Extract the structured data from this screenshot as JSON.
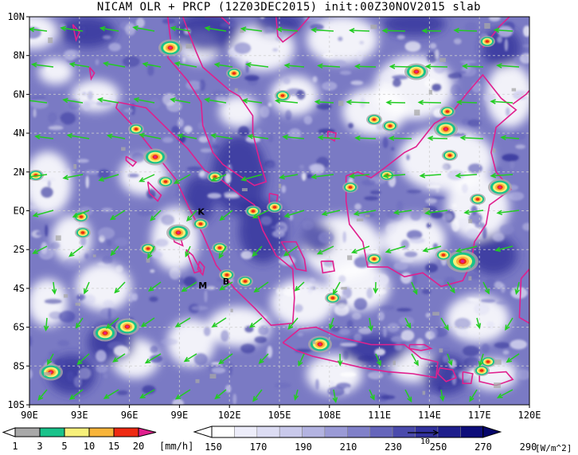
{
  "title": "NICAM OLR + PRCP (12Z03DEC2015) init:00Z30NOV2015 slab",
  "map": {
    "lat_labels": [
      "10N",
      "8N",
      "6N",
      "4N",
      "2N",
      "EQ",
      "2S",
      "4S",
      "6S",
      "8S",
      "10S"
    ],
    "lon_labels": [
      "90E",
      "93E",
      "96E",
      "99E",
      "102E",
      "105E",
      "108E",
      "111E",
      "114E",
      "117E",
      "120E"
    ],
    "station_labels": [
      {
        "text": "K",
        "lon": 100.3,
        "lat": -0.2
      },
      {
        "text": "M",
        "lon": 100.4,
        "lat": -4.0
      },
      {
        "text": "B",
        "lon": 101.8,
        "lat": -3.8
      }
    ],
    "colors": {
      "coast": "#e0208e",
      "wind": "#22cc22",
      "grid": "#cfcfcf",
      "cloud_shades": [
        "#ffffff",
        "#e4e4f6",
        "#c8c8ec",
        "#a8a8dc",
        "#8888cc",
        "#6868bc",
        "#4848ac",
        "#2e2e98"
      ],
      "precip_shades": [
        "#a8a8a8",
        "#19c28a",
        "#f7f07a",
        "#f8b43a",
        "#ee2a12",
        "#e0208e"
      ]
    }
  },
  "precip_bar": {
    "labels": [
      "1",
      "3",
      "5",
      "10",
      "15",
      "20"
    ],
    "unit": "[mm/h]",
    "colors": [
      "#a8a8a8",
      "#19c28a",
      "#f7f07a",
      "#f8b43a",
      "#ee2a12",
      "#e0208e"
    ]
  },
  "olr_bar": {
    "labels": [
      "150",
      "170",
      "190",
      "210",
      "230",
      "250",
      "270",
      "290"
    ],
    "unit": "[W/m^2]",
    "ref_vector_label": "10",
    "colors": [
      "#ffffff",
      "#ededfa",
      "#dcdcf3",
      "#c9c9eb",
      "#b3b3e1",
      "#9a9ad6",
      "#8080c9",
      "#6565bb",
      "#4a4aac",
      "#31319d",
      "#1e1e8c",
      "#0d0d7a"
    ]
  }
}
